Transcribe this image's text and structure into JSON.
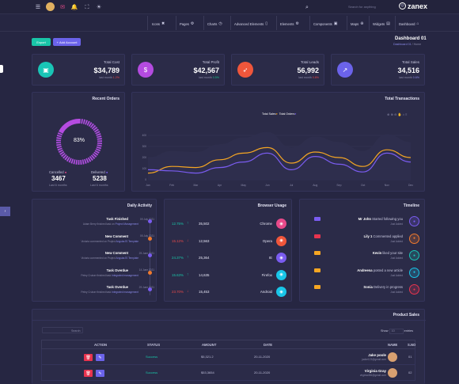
{
  "brand": {
    "name": "zanex"
  },
  "search": {
    "placeholder": "Search for anything"
  },
  "nav": {
    "items": [
      {
        "label": "Icons"
      },
      {
        "label": "Pages"
      },
      {
        "label": "Charts"
      },
      {
        "label": "Advanced Elements"
      },
      {
        "label": "Elements"
      },
      {
        "label": "Components"
      },
      {
        "label": "Maps"
      },
      {
        "label": "Widgets"
      },
      {
        "label": "Dashboard"
      }
    ]
  },
  "header": {
    "title": "Dashboard 01",
    "breadcrumb_home": "Dashboard 01",
    "breadcrumb_current": "Home",
    "export_label": "Export",
    "add_account_label": "Add Account"
  },
  "stats": [
    {
      "label": "Total Cost",
      "value": "$34,789",
      "sub": "last month",
      "change": "1.2%",
      "color": "#19c5b6",
      "icon": "briefcase-icon"
    },
    {
      "label": "Total Profit",
      "value": "$42,567",
      "sub": "last month",
      "change": "0.5%",
      "color": "#b44be0",
      "icon": "dollar-icon"
    },
    {
      "label": "Total Leads",
      "value": "56,992",
      "sub": "last month",
      "change": "0.8%",
      "color": "#f0563b",
      "icon": "rocket-icon"
    },
    {
      "label": "Total Sales",
      "value": "34,516",
      "sub": "last month",
      "change": "0.6%",
      "color": "#6b63ea",
      "icon": "trend-icon"
    }
  ],
  "recent_orders": {
    "title": "Recent Orders",
    "percent": "83%",
    "cancelled_label": "Cancelled",
    "cancelled_value": "3467",
    "cancelled_sub": "Last 6 months",
    "delivered_label": "Delivered",
    "delivered_value": "5238",
    "delivered_sub": "Last 6 months",
    "gauge_fraction": 0.83
  },
  "transactions": {
    "title": "Total Transactions",
    "legend_sales": "Total Sales",
    "legend_orders": "Total Orders"
  },
  "chart_data": {
    "type": "line",
    "title": "Total Transactions",
    "categories": [
      "Jan",
      "Feb",
      "Mar",
      "Apr",
      "May",
      "Jun",
      "Jul",
      "Aug",
      "Sep",
      "Oct",
      "Nov",
      "Dec"
    ],
    "yticks": [
      "0",
      "100",
      "200",
      "300",
      "400"
    ],
    "ylim": [
      0,
      500
    ],
    "series": [
      {
        "name": "Total Sales",
        "color": "#f5a623",
        "values": [
          60,
          120,
          110,
          180,
          240,
          290,
          150,
          250,
          200,
          120,
          270,
          200
        ]
      },
      {
        "name": "Total Orders",
        "color": "#7a5cf0",
        "values": [
          90,
          80,
          60,
          110,
          160,
          240,
          90,
          210,
          140,
          70,
          240,
          160
        ]
      }
    ]
  },
  "daily": {
    "title": "Daily Activity",
    "items": [
      {
        "title": "Task Finished",
        "time": "09 July 2021",
        "desc": "Adam Berry finished task on",
        "link": "Project Management",
        "color": "#7a5cf0"
      },
      {
        "title": "New Comment",
        "time": "05 July 2021",
        "desc": "Victoria commented on Project",
        "link": "AngularJS Template",
        "color": "#f07a2e"
      },
      {
        "title": "New Comment",
        "time": "25 June 2021",
        "desc": "Victoria commented on Project",
        "link": "AngularJS Template",
        "color": "#7a5cf0"
      },
      {
        "title": "Task Overdue",
        "time": "14 June 2021",
        "desc": "Petey Cruiser finished task",
        "link": "Integrated management",
        "color": "#f07a2e"
      },
      {
        "title": "Task Overdue",
        "time": "29 June 2021",
        "desc": "Petey Cruiser finished task",
        "link": "Integrated management",
        "color": "#7a5cf0"
      }
    ]
  },
  "browser": {
    "title": "Browser Usage",
    "items": [
      {
        "pct": "12.75%",
        "dir": "up",
        "count": "35,502",
        "name": "Chrome",
        "color": "#e84a8a",
        "icon": "chrome-icon"
      },
      {
        "pct": "15.12%",
        "dir": "down",
        "count": "12,563",
        "name": "Opera",
        "color": "#f0563b",
        "icon": "opera-icon"
      },
      {
        "pct": "24.37%",
        "dir": "up",
        "count": "25,364",
        "name": "IE",
        "color": "#7a5cf0",
        "icon": "ie-icon"
      },
      {
        "pct": "15.63%",
        "dir": "up",
        "count": "14,635",
        "name": "Firefox",
        "color": "#19c5e8",
        "icon": "firefox-icon"
      },
      {
        "pct": "23.70%",
        "dir": "down",
        "count": "15,453",
        "name": "Android",
        "color": "#19c5e8",
        "icon": "android-icon"
      }
    ]
  },
  "timeline": {
    "title": "Timeline",
    "items": [
      {
        "badge_color": "#7a5cf0",
        "name": "Mr John",
        "text": "Started following you",
        "sub": "Just Added",
        "color": "#7a5cf0",
        "icon": "user-add-icon"
      },
      {
        "badge_color": "#e8344f",
        "name": "Lily 1",
        "text": "Commented applied",
        "sub": "Just Added",
        "color": "#f07a2e",
        "icon": "chat-icon"
      },
      {
        "badge_color": "#f5a623",
        "name": "Kevin",
        "text": "liked your site",
        "sub": "Just Added",
        "color": "#19c5b6",
        "icon": "like-icon"
      },
      {
        "badge_color": "#f5a623",
        "name": "Andreena",
        "text": "posted a new article",
        "sub": "Just Added",
        "color": "#19c5e8",
        "icon": "article-icon"
      },
      {
        "badge_color": "#f5a623",
        "name": "Sonia",
        "text": "Delivery in progress",
        "sub": "Just Added",
        "color": "#e8344f",
        "icon": "delivery-icon"
      }
    ]
  },
  "sales": {
    "title": "Product Sales",
    "search_placeholder": "Search:",
    "show_label": "Show",
    "show_value": "10",
    "entries_label": "entries",
    "headers": {
      "action": "ACTION",
      "status": "STATUS",
      "amount": "AMOUNT",
      "date": "DATE",
      "name": "NAME",
      "sno": "S.NO"
    },
    "rows": [
      {
        "status": "Success",
        "amount": "$5,321.2",
        "date": "20-11-2020",
        "name": "Jake poole",
        "email": "jacke123@gmail.com",
        "sno": "01"
      },
      {
        "status": "Success",
        "amount": "$53,3654",
        "date": "20-11-2020",
        "name": "Virginia Gray",
        "email": "virginia456@gmail.com",
        "sno": "02"
      }
    ]
  }
}
